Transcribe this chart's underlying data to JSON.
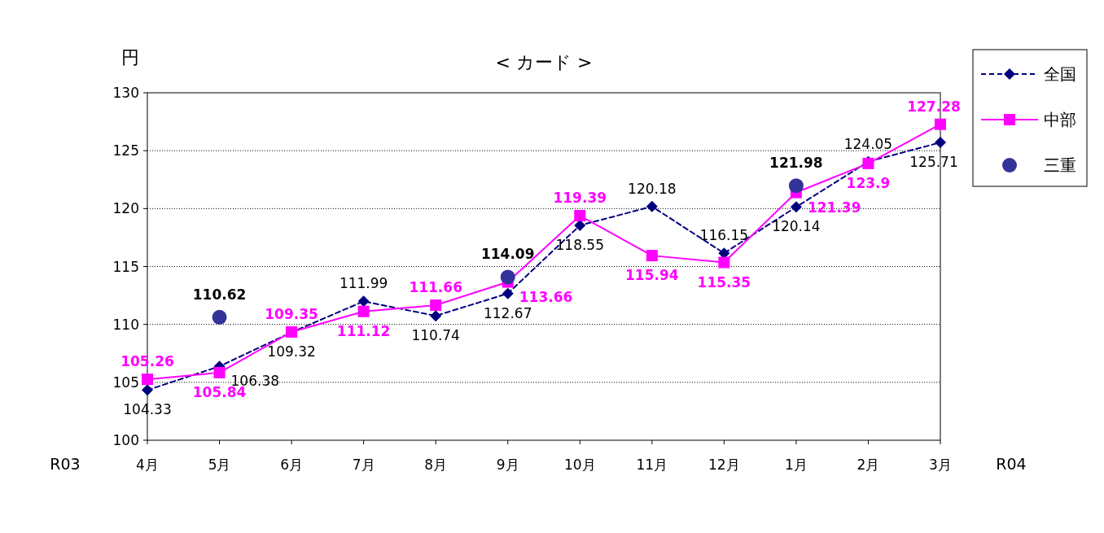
{
  "chart_data": {
    "type": "line",
    "title": "< カード >",
    "ylabel": "円",
    "categories": [
      "4月",
      "5月",
      "6月",
      "7月",
      "8月",
      "9月",
      "10月",
      "11月",
      "12月",
      "1月",
      "2月",
      "3月"
    ],
    "series": [
      {
        "name": "全国",
        "color": "#000080",
        "marker": "diamond",
        "line_style": "dashed",
        "values": [
          104.33,
          106.38,
          109.32,
          111.99,
          110.74,
          112.67,
          118.55,
          120.18,
          116.15,
          120.14,
          124.05,
          125.71
        ]
      },
      {
        "name": "中部",
        "color": "#ff00ff",
        "marker": "square",
        "line_style": "solid",
        "values": [
          105.26,
          105.84,
          109.35,
          111.12,
          111.66,
          113.66,
          119.39,
          115.94,
          115.35,
          121.39,
          123.9,
          127.28
        ]
      },
      {
        "name": "三重",
        "color": "#333399",
        "type": "scatter",
        "marker": "circle",
        "values": [
          null,
          110.62,
          null,
          null,
          null,
          114.09,
          null,
          null,
          null,
          121.98,
          null,
          null
        ]
      }
    ],
    "ylim": [
      100,
      130
    ],
    "yticks": [
      100,
      105,
      110,
      115,
      120,
      125,
      130
    ],
    "grid": "y",
    "legend": "top right",
    "data_labels": true,
    "annotations": [
      "R03",
      "R04"
    ]
  }
}
